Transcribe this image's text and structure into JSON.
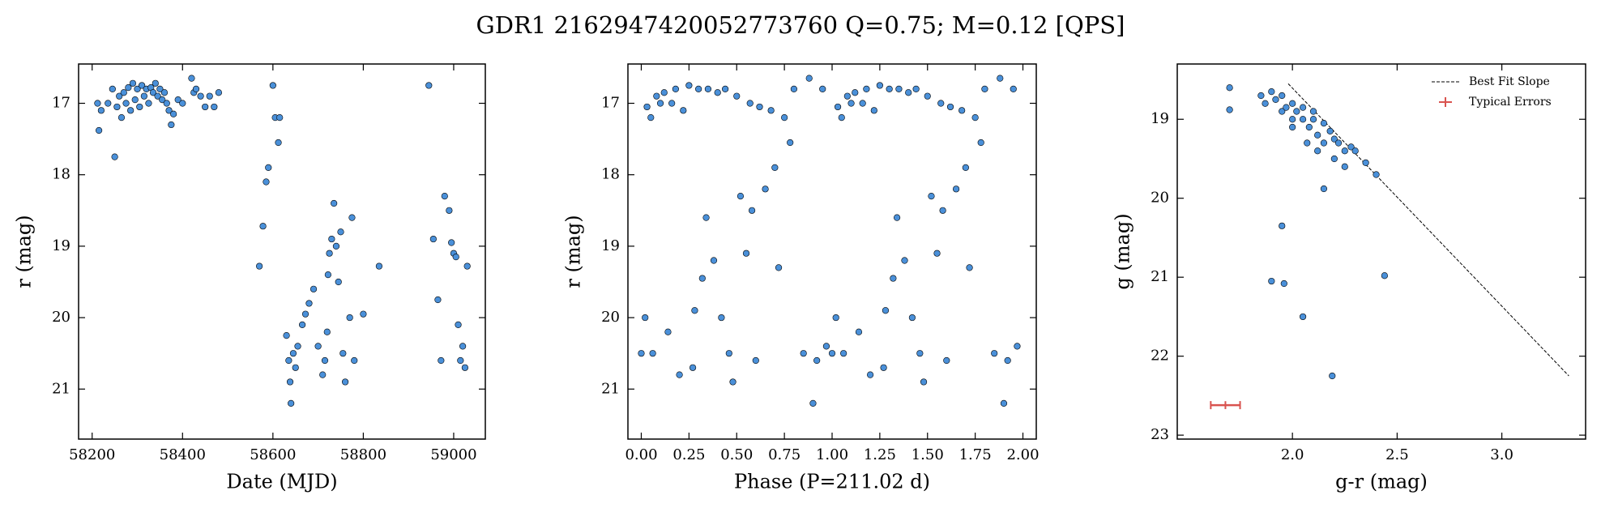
{
  "title": "GDR1 2162947420052773760  Q=0.75; M=0.12 [QPS]",
  "chart_data": [
    {
      "type": "scatter",
      "x_label": "Date (MJD)",
      "y_label": "r (mag)",
      "color": "#4a90d9",
      "xlim": [
        58170,
        59070
      ],
      "xticks": [
        58200,
        58400,
        58600,
        58800,
        59000
      ],
      "ylim": [
        21.7,
        16.45
      ],
      "yticks": [
        17,
        18,
        19,
        20,
        21
      ],
      "x": [
        58212,
        58215,
        58220,
        58235,
        58245,
        58250,
        58255,
        58260,
        58265,
        58270,
        58275,
        58280,
        58285,
        58290,
        58295,
        58300,
        58305,
        58310,
        58315,
        58320,
        58325,
        58330,
        58335,
        58340,
        58345,
        58350,
        58355,
        58360,
        58365,
        58370,
        58375,
        58380,
        58390,
        58400,
        58420,
        58425,
        58430,
        58440,
        58450,
        58460,
        58470,
        58480,
        58570,
        58578,
        58585,
        58590,
        58600,
        58605,
        58612,
        58615,
        58630,
        58635,
        58638,
        58640,
        58645,
        58650,
        58655,
        58665,
        58672,
        58680,
        58690,
        58700,
        58710,
        58715,
        58720,
        58722,
        58725,
        58730,
        58735,
        58740,
        58745,
        58750,
        58755,
        58760,
        58770,
        58775,
        58780,
        58800,
        58835,
        58945,
        58955,
        58965,
        58972,
        58980,
        58990,
        58995,
        59000,
        59005,
        59010,
        59015,
        59020,
        59025,
        59030
      ],
      "values": [
        17.0,
        17.38,
        17.1,
        17.0,
        16.8,
        17.75,
        17.05,
        16.9,
        17.2,
        16.85,
        17.0,
        16.78,
        17.1,
        16.72,
        16.95,
        16.8,
        17.05,
        16.75,
        16.9,
        16.8,
        17.0,
        16.78,
        16.85,
        16.72,
        16.9,
        16.8,
        16.95,
        16.85,
        17.0,
        17.1,
        17.3,
        17.15,
        16.95,
        17.0,
        16.65,
        16.85,
        16.8,
        16.9,
        17.05,
        16.9,
        17.05,
        16.85,
        19.28,
        18.72,
        18.1,
        17.9,
        16.75,
        17.2,
        17.55,
        17.2,
        20.25,
        20.6,
        20.9,
        21.2,
        20.5,
        20.7,
        20.4,
        20.1,
        19.95,
        19.8,
        19.6,
        20.4,
        20.8,
        20.6,
        20.2,
        19.4,
        19.1,
        18.9,
        18.4,
        19.0,
        19.5,
        18.8,
        20.5,
        20.9,
        20.0,
        18.6,
        20.6,
        19.95,
        19.28,
        16.75,
        18.9,
        19.75,
        20.6,
        18.3,
        18.5,
        18.95,
        19.1,
        19.15,
        20.1,
        20.6,
        20.4,
        20.7,
        19.28
      ]
    },
    {
      "type": "scatter",
      "x_label": "Phase (P=211.02 d)",
      "y_label": "r (mag)",
      "color": "#4a90d9",
      "xlim": [
        -0.07,
        2.07
      ],
      "xticks": [
        {
          "value": 0,
          "label": "0.00"
        },
        0.25,
        {
          "value": 0.5,
          "label": "0.50"
        },
        0.75,
        {
          "value": 1,
          "label": "1.00"
        },
        1.25,
        {
          "value": 1.5,
          "label": "1.50"
        },
        1.75,
        {
          "value": 2,
          "label": "2.00"
        }
      ],
      "ylim": [
        21.7,
        16.45
      ],
      "yticks": [
        17,
        18,
        19,
        20,
        21
      ],
      "x": [
        0.0,
        0.02,
        0.03,
        0.05,
        0.06,
        0.08,
        0.1,
        0.12,
        0.14,
        0.16,
        0.18,
        0.2,
        0.22,
        0.25,
        0.27,
        0.28,
        0.3,
        0.32,
        0.34,
        0.35,
        0.38,
        0.4,
        0.42,
        0.44,
        0.46,
        0.48,
        0.5,
        0.52,
        0.55,
        0.57,
        0.58,
        0.6,
        0.62,
        0.65,
        0.68,
        0.7,
        0.72,
        0.75,
        0.78,
        0.8,
        0.85,
        0.88,
        0.9,
        0.92,
        0.95,
        0.97,
        1.0,
        1.02,
        1.03,
        1.05,
        1.06,
        1.08,
        1.1,
        1.12,
        1.14,
        1.16,
        1.18,
        1.2,
        1.22,
        1.25,
        1.27,
        1.28,
        1.3,
        1.32,
        1.34,
        1.35,
        1.38,
        1.4,
        1.42,
        1.44,
        1.46,
        1.48,
        1.5,
        1.52,
        1.55,
        1.57,
        1.58,
        1.6,
        1.62,
        1.65,
        1.68,
        1.7,
        1.72,
        1.75,
        1.78,
        1.8,
        1.85,
        1.88,
        1.9,
        1.92,
        1.95,
        1.97
      ],
      "values": [
        20.5,
        20.0,
        17.05,
        17.2,
        20.5,
        16.9,
        17.0,
        16.85,
        20.2,
        17.0,
        16.8,
        20.8,
        17.1,
        16.75,
        20.7,
        19.9,
        16.8,
        19.45,
        18.6,
        16.8,
        19.2,
        16.85,
        20.0,
        16.8,
        20.5,
        20.9,
        16.9,
        18.3,
        19.1,
        17.0,
        18.5,
        20.6,
        17.05,
        18.2,
        17.1,
        17.9,
        19.3,
        17.2,
        17.55,
        16.8,
        20.5,
        16.65,
        21.2,
        20.6,
        16.8,
        20.4,
        20.5,
        20.0,
        17.05,
        17.2,
        20.5,
        16.9,
        17.0,
        16.85,
        20.2,
        17.0,
        16.8,
        20.8,
        17.1,
        16.75,
        20.7,
        19.9,
        16.8,
        19.45,
        18.6,
        16.8,
        19.2,
        16.85,
        20.0,
        16.8,
        20.5,
        20.9,
        16.9,
        18.3,
        19.1,
        17.0,
        18.5,
        20.6,
        17.05,
        18.2,
        17.1,
        17.9,
        19.3,
        17.2,
        17.55,
        16.8,
        20.5,
        16.65,
        21.2,
        20.6,
        16.8,
        20.4
      ]
    },
    {
      "type": "scatter",
      "x_label": "g-r (mag)",
      "y_label": "g (mag)",
      "color": "#4a90d9",
      "xlim": [
        1.45,
        3.4
      ],
      "xticks": [
        {
          "value": 2,
          "label": "2.0"
        },
        2.5,
        {
          "value": 3,
          "label": "3.0"
        }
      ],
      "ylim": [
        23.05,
        18.3
      ],
      "yticks": [
        19,
        20,
        21,
        22,
        23
      ],
      "x": [
        1.7,
        1.7,
        1.85,
        1.87,
        1.9,
        1.92,
        1.95,
        1.95,
        1.97,
        2.0,
        2.0,
        2.02,
        2.05,
        2.05,
        2.08,
        2.1,
        2.1,
        2.12,
        2.15,
        2.15,
        2.18,
        2.2,
        2.22,
        2.25,
        2.28,
        2.3,
        2.35,
        2.4,
        2.15,
        1.95,
        1.9,
        1.96,
        2.05,
        2.44,
        2.19,
        2.0,
        2.07,
        2.12,
        2.2,
        2.25
      ],
      "values": [
        18.6,
        18.88,
        18.7,
        18.8,
        18.65,
        18.75,
        18.9,
        18.7,
        18.85,
        18.8,
        19.0,
        18.9,
        19.0,
        18.85,
        19.1,
        19.0,
        18.9,
        19.2,
        19.05,
        19.3,
        19.15,
        19.25,
        19.3,
        19.4,
        19.35,
        19.4,
        19.55,
        19.7,
        19.88,
        20.35,
        21.05,
        21.08,
        21.5,
        20.98,
        22.25,
        19.1,
        19.3,
        19.4,
        19.5,
        19.6
      ],
      "legend": "upper right",
      "fit": {
        "name": "Best Fit Slope",
        "color": "#000000",
        "x": [
          1.98,
          3.32
        ],
        "values": [
          18.55,
          22.25
        ]
      },
      "errors": {
        "name": "Typical Errors",
        "color": "#d9534f",
        "x": 1.68,
        "value": 22.62,
        "xerr": 0.07,
        "yerr": 0.05
      }
    }
  ]
}
